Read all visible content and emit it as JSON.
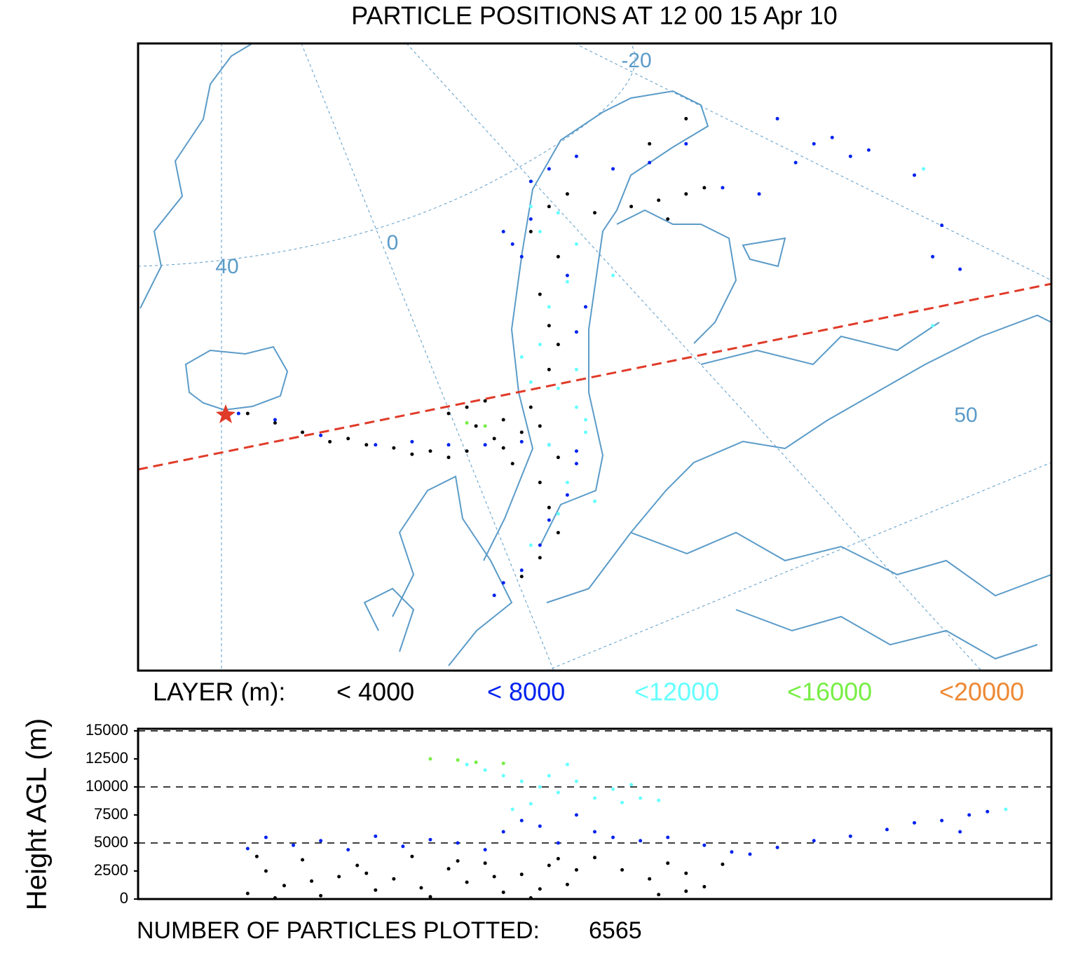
{
  "chart_data": [
    {
      "type": "map",
      "title": "PARTICLE POSITIONS AT 12 00  15 Apr 10",
      "graticule_labels": [
        "-20",
        "0",
        "40",
        "50"
      ],
      "legend_title": "LAYER (m):",
      "xlim": [
        0,
        100
      ],
      "ylim": [
        0,
        100
      ],
      "series": [
        {
          "name": "< 4000",
          "color": "#000000",
          "x": [
            12,
            15,
            18,
            21,
            25,
            28,
            32,
            36,
            40,
            34,
            30,
            23,
            34,
            36,
            38,
            40,
            42,
            39,
            41,
            37,
            44,
            43,
            44,
            45,
            46,
            44,
            42,
            46,
            45,
            46,
            45,
            44,
            46,
            43,
            45,
            47,
            50,
            54,
            57,
            60,
            58,
            62,
            56,
            60
          ],
          "y": [
            41,
            39.5,
            38,
            36.5,
            36,
            35.5,
            35,
            35,
            35.5,
            34,
            34.5,
            37,
            41,
            42,
            43,
            40,
            38,
            37,
            33,
            39,
            39,
            42,
            30,
            26,
            22,
            18,
            15,
            34,
            48,
            52,
            55,
            60,
            66,
            70,
            74,
            76,
            73,
            74,
            75,
            76,
            72,
            77,
            84,
            88
          ]
        },
        {
          "name": "< 8000",
          "color": "#0022ee",
          "x": [
            11,
            15,
            20,
            26,
            30,
            34,
            38,
            42,
            45,
            48,
            40,
            39,
            42,
            44,
            45,
            47,
            48,
            42,
            40,
            41,
            43,
            47,
            49,
            48,
            43,
            45,
            48,
            52,
            56,
            60,
            64,
            68,
            72,
            74,
            76,
            78,
            80,
            70,
            85,
            88,
            87,
            90
          ],
          "y": [
            41,
            40,
            37.5,
            36,
            36.5,
            36,
            36,
            36.5,
            36,
            35,
            14,
            12,
            16,
            20,
            24,
            28,
            33,
            66,
            70,
            68,
            72,
            63,
            58,
            54,
            78,
            80,
            82,
            80,
            81,
            84,
            77,
            76,
            81,
            84,
            85,
            82,
            83,
            88,
            79,
            71,
            66,
            64
          ]
        },
        {
          "name": "<12000",
          "color": "#66ffff",
          "x": [
            42,
            44,
            43,
            46,
            48,
            49,
            45,
            47,
            50,
            43,
            46,
            44,
            48,
            47,
            45,
            48,
            49,
            46,
            43,
            52,
            87,
            86
          ],
          "y": [
            50,
            52,
            46,
            45,
            42,
            38,
            36,
            30,
            27,
            74,
            73,
            70,
            68,
            62,
            58,
            48,
            40,
            25,
            20,
            63,
            55,
            80
          ]
        },
        {
          "name": "<16000",
          "color": "#77ee44",
          "x": [
            38,
            36
          ],
          "y": [
            39,
            39.5
          ]
        },
        {
          "name": "<20000",
          "color": "#ee8833",
          "x": [],
          "y": []
        }
      ]
    },
    {
      "type": "scatter",
      "ylabel": "Height AGL (m)",
      "xlim": [
        0,
        100
      ],
      "ylim": [
        0,
        15000
      ],
      "yticks": [
        0,
        2500,
        5000,
        7500,
        10000,
        12500,
        15000
      ],
      "gridlines": [
        5000,
        10000,
        15000
      ],
      "footer_label": "NUMBER OF PARTICLES PLOTTED:",
      "particle_count": 6565,
      "series": [
        {
          "name": "< 4000",
          "color": "#000000",
          "x": [
            12,
            14,
            16,
            18,
            20,
            22,
            24,
            26,
            28,
            30,
            32,
            34,
            36,
            38,
            40,
            42,
            44,
            46,
            47,
            48,
            13,
            15,
            19,
            25,
            31,
            35,
            39,
            43,
            45,
            50,
            53,
            56,
            58,
            60,
            62,
            57,
            60,
            64
          ],
          "y": [
            500,
            2500,
            1200,
            3500,
            300,
            2000,
            3000,
            800,
            1800,
            3800,
            200,
            2700,
            1500,
            3200,
            600,
            2200,
            900,
            3600,
            1300,
            2600,
            3800,
            100,
            1600,
            2300,
            1000,
            3400,
            2000,
            100,
            3000,
            3700,
            2600,
            1800,
            3200,
            2300,
            1100,
            400,
            700,
            3100
          ]
        },
        {
          "name": "< 8000",
          "color": "#0022ee",
          "x": [
            12,
            14,
            17,
            20,
            23,
            26,
            29,
            32,
            35,
            38,
            40,
            42,
            44,
            46,
            48,
            50,
            52,
            55,
            58,
            62,
            65,
            67,
            70,
            74,
            78,
            82,
            85,
            88,
            91,
            90,
            93
          ],
          "y": [
            4500,
            5500,
            4800,
            5200,
            4400,
            5600,
            4700,
            5300,
            5000,
            4400,
            6000,
            7000,
            6500,
            5000,
            7500,
            6000,
            5500,
            5200,
            5500,
            4800,
            4200,
            4000,
            4600,
            5200,
            5600,
            6200,
            6800,
            7000,
            7500,
            6000,
            7800
          ]
        },
        {
          "name": "<12000",
          "color": "#66ffff",
          "x": [
            36,
            38,
            40,
            42,
            44,
            46,
            48,
            50,
            52,
            54,
            55,
            57,
            43,
            45,
            47,
            41,
            53,
            95
          ],
          "y": [
            12000,
            11500,
            11000,
            10500,
            10000,
            9500,
            10500,
            9000,
            9800,
            10200,
            9000,
            8800,
            8500,
            11000,
            12000,
            8000,
            8600,
            8000
          ]
        },
        {
          "name": "<16000",
          "color": "#77ee44",
          "x": [
            32,
            35,
            37,
            40
          ],
          "y": [
            12500,
            12400,
            12200,
            12100
          ]
        }
      ]
    }
  ]
}
